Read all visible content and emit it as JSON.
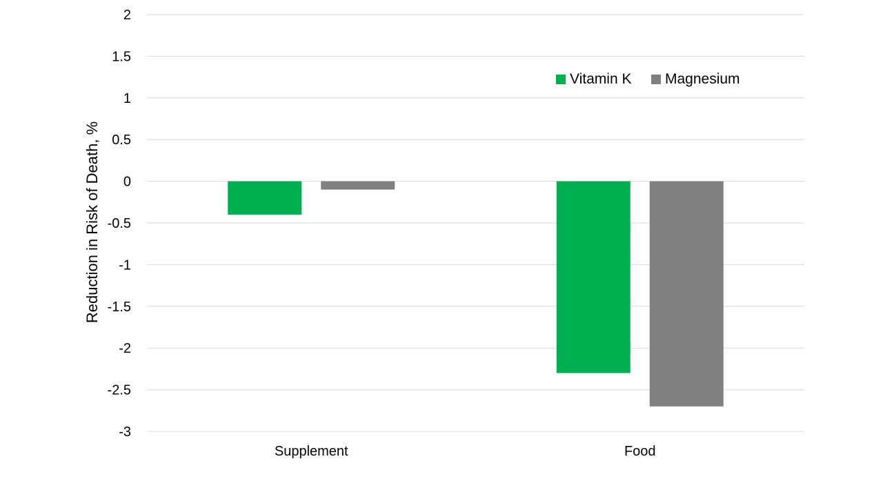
{
  "chart_data": {
    "type": "bar",
    "title": "",
    "xlabel": "",
    "ylabel": "Reduction in Risk of Death, %",
    "ylim": [
      -3,
      2
    ],
    "yticks": [
      2,
      1.5,
      1,
      0.5,
      0,
      -0.5,
      -1,
      -1.5,
      -2,
      -2.5,
      -3
    ],
    "grid": true,
    "legend_position": "top-right",
    "categories": [
      "Supplement",
      "Food"
    ],
    "series": [
      {
        "name": "Vitamin K",
        "color": "#00b050",
        "values": [
          -0.4,
          -2.3
        ]
      },
      {
        "name": "Magnesium",
        "color": "#808080",
        "values": [
          -0.1,
          -2.7
        ]
      }
    ]
  }
}
